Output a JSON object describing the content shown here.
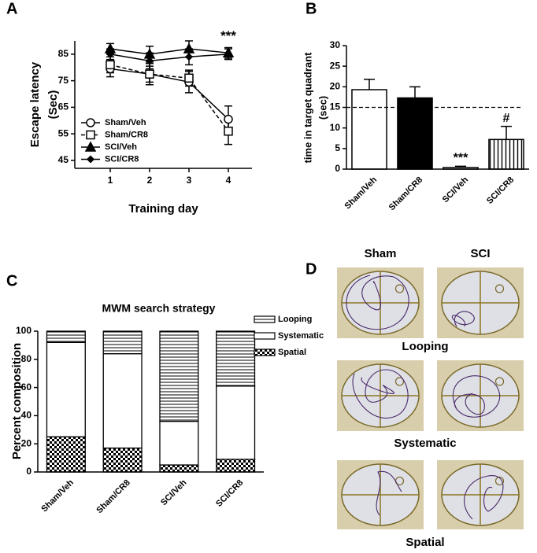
{
  "chart_data": [
    {
      "type": "line",
      "panel": "A",
      "xlabel": "Training day",
      "ylabel": [
        "Escape latency",
        "(Sec)"
      ],
      "x": [
        1,
        2,
        3,
        4
      ],
      "xlim": [
        0.1,
        4.6
      ],
      "xticks": [
        1,
        2,
        3,
        4
      ],
      "ylim": [
        42,
        90
      ],
      "yticks": [
        45,
        55,
        65,
        75,
        85
      ],
      "legend": "lower left",
      "series": [
        {
          "name": "Sham/Veh",
          "color": "#000000",
          "marker": "circle-open",
          "dash": false,
          "values": [
            79.5,
            77.5,
            74.5,
            60.5
          ],
          "errors": [
            3,
            3,
            4,
            5
          ]
        },
        {
          "name": "Sham/CR8",
          "color": "#000000",
          "marker": "square-open",
          "dash": true,
          "values": [
            81,
            77.5,
            76,
            56
          ],
          "errors": [
            3,
            4,
            3,
            5
          ]
        },
        {
          "name": "SCI/Veh",
          "color": "#000000",
          "marker": "triangle",
          "dash": false,
          "values": [
            87,
            85,
            87,
            85.5
          ],
          "errors": [
            2,
            3,
            3,
            2
          ],
          "point_labels": [
            null,
            null,
            null,
            "***"
          ]
        },
        {
          "name": "SCI/CR8",
          "color": "#000000",
          "marker": "diamond",
          "dash": false,
          "values": [
            85,
            82.5,
            84,
            85
          ],
          "errors": [
            2,
            3,
            3,
            2
          ]
        }
      ]
    },
    {
      "type": "bar",
      "panel": "B",
      "ylabel": [
        "time in target quadrant",
        "(sec)"
      ],
      "categories": [
        "Sham/Veh",
        "Sham/CR8",
        "SCI/Veh",
        "SCI/CR8"
      ],
      "values": [
        19.3,
        17.3,
        0.4,
        7.2
      ],
      "errors": [
        2.5,
        2.7,
        0.3,
        3.2
      ],
      "fills": [
        "#ffffff",
        "#000000",
        "#ffffff",
        "vertical-hatch"
      ],
      "bar_labels": [
        null,
        null,
        "***",
        "#"
      ],
      "hline": 15,
      "ylim": [
        0,
        30
      ],
      "yticks": [
        0,
        5,
        10,
        15,
        20,
        25,
        30
      ]
    },
    {
      "type": "stacked_bar",
      "panel": "C",
      "title": "MWM search strategy",
      "ylabel": "Percent composition",
      "categories": [
        "Sham/Veh",
        "Sham/CR8",
        "SCI/Veh",
        "SCI/CR8"
      ],
      "ylim": [
        0,
        100
      ],
      "yticks": [
        0,
        20,
        40,
        60,
        80,
        100
      ],
      "legend": "upper right",
      "series": [
        {
          "name": "Spatial",
          "fill": "checker",
          "values": [
            25,
            17,
            5,
            9
          ]
        },
        {
          "name": "Systematic",
          "fill": "#ffffff",
          "values": [
            67,
            67,
            31,
            52
          ]
        },
        {
          "name": "Looping",
          "fill": "horizontal-hatch",
          "values": [
            8,
            16,
            64,
            39
          ]
        }
      ]
    }
  ],
  "panel_d": {
    "panel": "D",
    "columns": [
      "Sham",
      "SCI"
    ],
    "rows": [
      "Looping",
      "Systematic",
      "Spatial"
    ]
  }
}
